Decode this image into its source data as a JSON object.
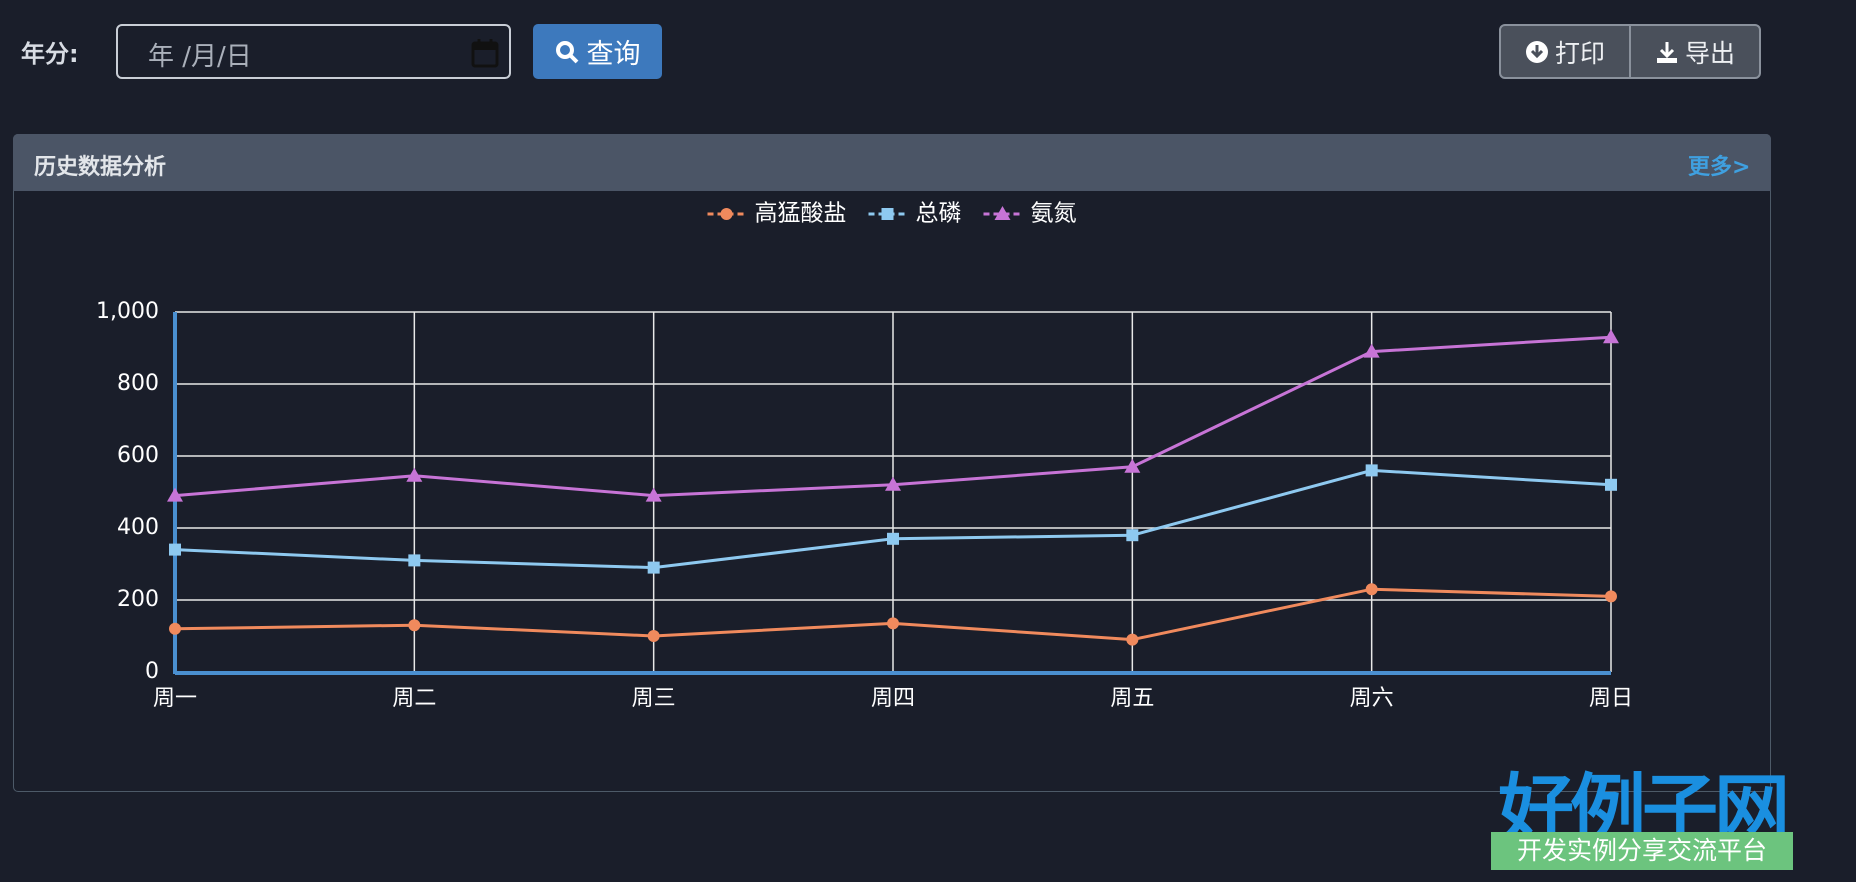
{
  "toolbar": {
    "year_label": "年分:",
    "date_placeholder": "年 /月/日",
    "search_button": "查询",
    "print_button": "打印",
    "export_button": "导出"
  },
  "panel": {
    "title": "历史数据分析",
    "more_link": "更多>"
  },
  "chart_data": {
    "type": "line",
    "categories": [
      "周一",
      "周二",
      "周三",
      "周四",
      "周五",
      "周六",
      "周日"
    ],
    "series": [
      {
        "name": "高猛酸盐",
        "color": "#f08a5d",
        "marker": "circle",
        "values": [
          120,
          130,
          100,
          135,
          90,
          230,
          210
        ]
      },
      {
        "name": "总磷",
        "color": "#8ec9f0",
        "marker": "square",
        "values": [
          340,
          310,
          290,
          370,
          380,
          560,
          520
        ]
      },
      {
        "name": "氨氮",
        "color": "#c774d6",
        "marker": "triangle",
        "values": [
          490,
          545,
          490,
          520,
          570,
          890,
          930
        ]
      }
    ],
    "ylim": [
      0,
      1000
    ],
    "yticks": [
      0,
      200,
      400,
      600,
      800,
      {
        "value": 1000,
        "label": "1,000"
      }
    ],
    "grid": true,
    "legend": "top"
  },
  "watermark": {
    "title": "好例子网",
    "subtitle": "开发实例分享交流平台"
  }
}
